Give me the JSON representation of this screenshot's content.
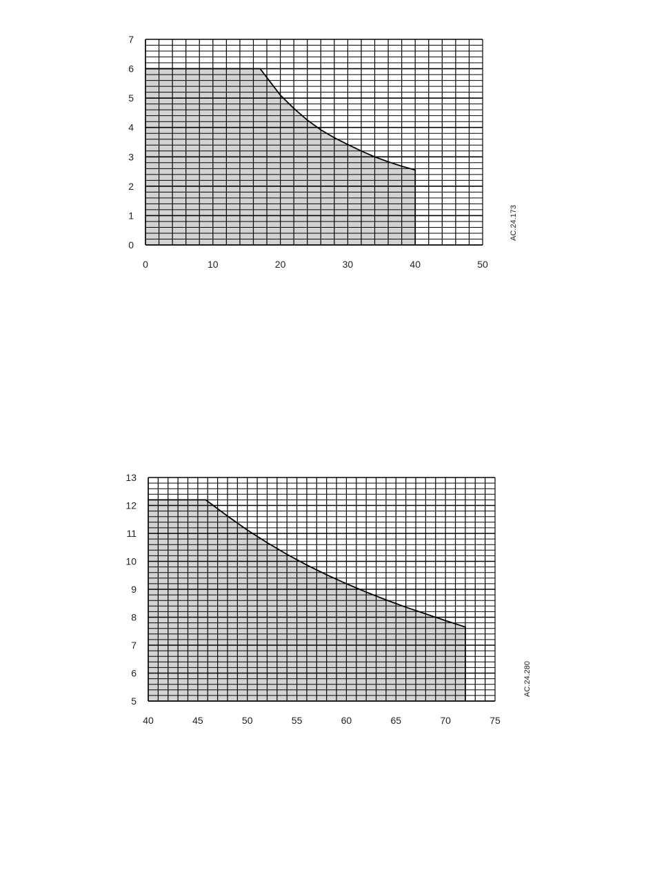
{
  "chart_data": [
    {
      "type": "area",
      "title": "",
      "xlabel": "",
      "ylabel": "",
      "xlim": [
        0,
        50
      ],
      "ylim": [
        0,
        7
      ],
      "x_ticks": [
        "0",
        "10",
        "20",
        "30",
        "40",
        "50"
      ],
      "y_ticks": [
        "0",
        "1",
        "2",
        "3",
        "4",
        "5",
        "6",
        "7"
      ],
      "x_minor_step": 2,
      "y_minor_step": 0.2,
      "grid": true,
      "fill_color": "#d3d3d3",
      "series": [
        {
          "x": [
            0,
            17,
            18,
            20,
            22,
            24,
            26,
            28,
            30,
            32,
            34,
            36,
            38,
            40
          ],
          "y": [
            6,
            6,
            5.7,
            5.1,
            4.65,
            4.25,
            3.92,
            3.65,
            3.42,
            3.2,
            3.0,
            2.83,
            2.68,
            2.55
          ]
        }
      ],
      "figure_code": "AC.24.173"
    },
    {
      "type": "area",
      "title": "",
      "xlabel": "",
      "ylabel": "",
      "xlim": [
        40,
        75
      ],
      "ylim": [
        5,
        13
      ],
      "x_ticks": [
        "40",
        "45",
        "50",
        "55",
        "60",
        "65",
        "70",
        "75"
      ],
      "y_ticks": [
        "5",
        "6",
        "7",
        "8",
        "9",
        "10",
        "11",
        "12",
        "13"
      ],
      "x_minor_step": 1,
      "y_minor_step": 0.2,
      "grid": true,
      "fill_color": "#d3d3d3",
      "series": [
        {
          "x": [
            40,
            45.8,
            48,
            50,
            52,
            54,
            56,
            58,
            60,
            62,
            64,
            66,
            68,
            70,
            72
          ],
          "y": [
            12.2,
            12.2,
            11.62,
            11.12,
            10.67,
            10.25,
            9.87,
            9.52,
            9.2,
            8.9,
            8.62,
            8.36,
            8.12,
            7.88,
            7.65
          ]
        }
      ],
      "figure_code": "AC.24.280"
    }
  ]
}
